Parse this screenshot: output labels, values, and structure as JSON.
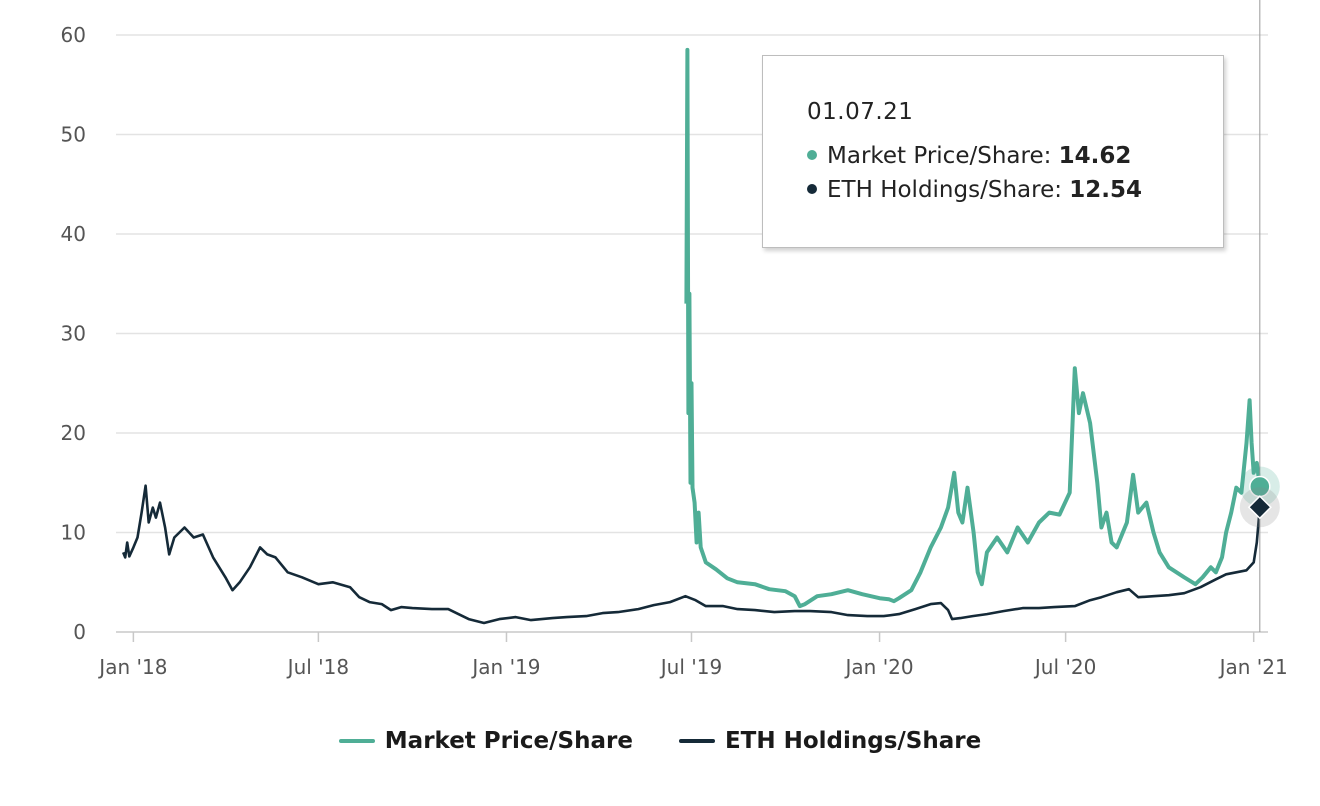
{
  "chart_data": {
    "type": "line",
    "x_ticks": [
      "Jan '18",
      "Jul '18",
      "Jan '19",
      "Jul '19",
      "Jan '20",
      "Jul '20",
      "Jan '21"
    ],
    "y_ticks": [
      "0",
      "10",
      "20",
      "30",
      "40",
      "50",
      "60"
    ],
    "ylim": [
      0,
      60
    ],
    "xlim": [
      "2017-12-15",
      "2021-01-15"
    ],
    "grid": true,
    "legend_position": "bottom",
    "colors": {
      "market": "#4fae96",
      "eth": "#152a38"
    },
    "series": [
      {
        "name": "Market Price/Share",
        "points": [
          [
            "2019-06-26",
            33
          ],
          [
            "2019-06-27",
            58.5
          ],
          [
            "2019-06-28",
            22
          ],
          [
            "2019-06-29",
            34
          ],
          [
            "2019-06-30",
            15
          ],
          [
            "2019-07-01",
            25
          ],
          [
            "2019-07-02",
            14.5
          ],
          [
            "2019-07-04",
            13
          ],
          [
            "2019-07-06",
            9
          ],
          [
            "2019-07-08",
            12
          ],
          [
            "2019-07-10",
            8.5
          ],
          [
            "2019-07-15",
            7
          ],
          [
            "2019-07-25",
            6.3
          ],
          [
            "2019-08-05",
            5.4
          ],
          [
            "2019-08-15",
            5.0
          ],
          [
            "2019-09-01",
            4.8
          ],
          [
            "2019-09-15",
            4.3
          ],
          [
            "2019-10-01",
            4.1
          ],
          [
            "2019-10-10",
            3.6
          ],
          [
            "2019-10-15",
            2.6
          ],
          [
            "2019-10-20",
            2.8
          ],
          [
            "2019-11-01",
            3.6
          ],
          [
            "2019-11-15",
            3.8
          ],
          [
            "2019-12-01",
            4.2
          ],
          [
            "2019-12-15",
            3.8
          ],
          [
            "2020-01-01",
            3.4
          ],
          [
            "2020-01-10",
            3.3
          ],
          [
            "2020-01-15",
            3.1
          ],
          [
            "2020-01-20",
            3.4
          ],
          [
            "2020-02-01",
            4.2
          ],
          [
            "2020-02-10",
            6
          ],
          [
            "2020-02-20",
            8.5
          ],
          [
            "2020-03-01",
            10.5
          ],
          [
            "2020-03-08",
            12.5
          ],
          [
            "2020-03-14",
            16.0
          ],
          [
            "2020-03-18",
            12
          ],
          [
            "2020-03-22",
            11
          ],
          [
            "2020-03-27",
            14.5
          ],
          [
            "2020-04-02",
            10
          ],
          [
            "2020-04-06",
            6
          ],
          [
            "2020-04-10",
            4.8
          ],
          [
            "2020-04-15",
            8
          ],
          [
            "2020-04-25",
            9.5
          ],
          [
            "2020-05-05",
            8
          ],
          [
            "2020-05-15",
            10.5
          ],
          [
            "2020-05-25",
            9
          ],
          [
            "2020-06-05",
            11
          ],
          [
            "2020-06-15",
            12
          ],
          [
            "2020-06-25",
            11.8
          ],
          [
            "2020-07-05",
            14
          ],
          [
            "2020-07-10",
            26.5
          ],
          [
            "2020-07-14",
            22
          ],
          [
            "2020-07-18",
            24
          ],
          [
            "2020-07-25",
            21
          ],
          [
            "2020-08-01",
            15
          ],
          [
            "2020-08-05",
            10.5
          ],
          [
            "2020-08-10",
            12
          ],
          [
            "2020-08-15",
            9
          ],
          [
            "2020-08-20",
            8.5
          ],
          [
            "2020-08-30",
            11
          ],
          [
            "2020-09-05",
            15.8
          ],
          [
            "2020-09-10",
            12
          ],
          [
            "2020-09-18",
            13
          ],
          [
            "2020-09-25",
            10
          ],
          [
            "2020-10-01",
            8
          ],
          [
            "2020-10-10",
            6.5
          ],
          [
            "2020-10-25",
            5.5
          ],
          [
            "2020-11-05",
            4.8
          ],
          [
            "2020-11-12",
            5.5
          ],
          [
            "2020-11-20",
            6.5
          ],
          [
            "2020-11-25",
            6
          ],
          [
            "2020-12-01",
            7.5
          ],
          [
            "2020-12-05",
            10
          ],
          [
            "2020-12-10",
            12
          ],
          [
            "2020-12-15",
            14.5
          ],
          [
            "2020-12-20",
            14
          ],
          [
            "2020-12-25",
            19
          ],
          [
            "2020-12-28",
            23.3
          ],
          [
            "2020-12-30",
            19
          ],
          [
            "2021-01-01",
            16
          ],
          [
            "2021-01-04",
            17
          ],
          [
            "2021-01-07",
            14.62
          ]
        ]
      },
      {
        "name": "ETH Holdings/Share",
        "points": [
          [
            "2017-12-22",
            8
          ],
          [
            "2017-12-24",
            7.5
          ],
          [
            "2017-12-26",
            9
          ],
          [
            "2017-12-28",
            7.6
          ],
          [
            "2018-01-01",
            8.5
          ],
          [
            "2018-01-05",
            9.5
          ],
          [
            "2018-01-09",
            12
          ],
          [
            "2018-01-13",
            14.7
          ],
          [
            "2018-01-16",
            11
          ],
          [
            "2018-01-20",
            12.5
          ],
          [
            "2018-01-23",
            11.5
          ],
          [
            "2018-01-27",
            13
          ],
          [
            "2018-02-01",
            10.5
          ],
          [
            "2018-02-05",
            7.8
          ],
          [
            "2018-02-10",
            9.5
          ],
          [
            "2018-02-20",
            10.5
          ],
          [
            "2018-03-01",
            9.5
          ],
          [
            "2018-03-10",
            9.8
          ],
          [
            "2018-03-20",
            7.5
          ],
          [
            "2018-04-01",
            5.5
          ],
          [
            "2018-04-08",
            4.2
          ],
          [
            "2018-04-15",
            5
          ],
          [
            "2018-04-25",
            6.5
          ],
          [
            "2018-05-05",
            8.5
          ],
          [
            "2018-05-12",
            7.8
          ],
          [
            "2018-05-20",
            7.5
          ],
          [
            "2018-06-01",
            6
          ],
          [
            "2018-06-15",
            5.5
          ],
          [
            "2018-07-01",
            4.8
          ],
          [
            "2018-07-15",
            5
          ],
          [
            "2018-08-01",
            4.5
          ],
          [
            "2018-08-10",
            3.5
          ],
          [
            "2018-08-20",
            3
          ],
          [
            "2018-09-01",
            2.8
          ],
          [
            "2018-09-10",
            2.2
          ],
          [
            "2018-09-20",
            2.5
          ],
          [
            "2018-10-01",
            2.4
          ],
          [
            "2018-10-20",
            2.3
          ],
          [
            "2018-11-05",
            2.3
          ],
          [
            "2018-11-15",
            1.8
          ],
          [
            "2018-11-25",
            1.3
          ],
          [
            "2018-12-10",
            0.9
          ],
          [
            "2018-12-25",
            1.3
          ],
          [
            "2019-01-10",
            1.5
          ],
          [
            "2019-01-25",
            1.2
          ],
          [
            "2019-02-15",
            1.4
          ],
          [
            "2019-03-01",
            1.5
          ],
          [
            "2019-03-20",
            1.6
          ],
          [
            "2019-04-05",
            1.9
          ],
          [
            "2019-04-20",
            2.0
          ],
          [
            "2019-05-10",
            2.3
          ],
          [
            "2019-05-25",
            2.7
          ],
          [
            "2019-06-10",
            3.0
          ],
          [
            "2019-06-25",
            3.6
          ],
          [
            "2019-07-05",
            3.2
          ],
          [
            "2019-07-15",
            2.6
          ],
          [
            "2019-08-01",
            2.6
          ],
          [
            "2019-08-15",
            2.3
          ],
          [
            "2019-09-01",
            2.2
          ],
          [
            "2019-09-20",
            2.0
          ],
          [
            "2019-10-10",
            2.1
          ],
          [
            "2019-10-25",
            2.1
          ],
          [
            "2019-11-15",
            2.0
          ],
          [
            "2019-12-01",
            1.7
          ],
          [
            "2019-12-20",
            1.6
          ],
          [
            "2020-01-05",
            1.6
          ],
          [
            "2020-01-20",
            1.8
          ],
          [
            "2020-02-05",
            2.3
          ],
          [
            "2020-02-20",
            2.8
          ],
          [
            "2020-03-01",
            2.9
          ],
          [
            "2020-03-08",
            2.2
          ],
          [
            "2020-03-12",
            1.3
          ],
          [
            "2020-03-20",
            1.4
          ],
          [
            "2020-04-01",
            1.6
          ],
          [
            "2020-04-15",
            1.8
          ],
          [
            "2020-05-01",
            2.1
          ],
          [
            "2020-05-20",
            2.4
          ],
          [
            "2020-06-05",
            2.4
          ],
          [
            "2020-06-20",
            2.5
          ],
          [
            "2020-07-10",
            2.6
          ],
          [
            "2020-07-25",
            3.2
          ],
          [
            "2020-08-05",
            3.5
          ],
          [
            "2020-08-20",
            4.0
          ],
          [
            "2020-09-01",
            4.3
          ],
          [
            "2020-09-10",
            3.5
          ],
          [
            "2020-09-25",
            3.6
          ],
          [
            "2020-10-10",
            3.7
          ],
          [
            "2020-10-25",
            3.9
          ],
          [
            "2020-11-10",
            4.5
          ],
          [
            "2020-11-25",
            5.3
          ],
          [
            "2020-12-05",
            5.8
          ],
          [
            "2020-12-15",
            6.0
          ],
          [
            "2020-12-25",
            6.2
          ],
          [
            "2021-01-01",
            7.0
          ],
          [
            "2021-01-04",
            9.0
          ],
          [
            "2021-01-07",
            12.54
          ]
        ]
      }
    ]
  },
  "tooltip": {
    "date": "01.07.21",
    "rows": [
      {
        "label": "Market Price/Share: ",
        "value": "14.62"
      },
      {
        "label": "ETH Holdings/Share: ",
        "value": "12.54"
      }
    ]
  },
  "legend": [
    {
      "label": "Market Price/Share"
    },
    {
      "label": "ETH Holdings/Share"
    }
  ]
}
